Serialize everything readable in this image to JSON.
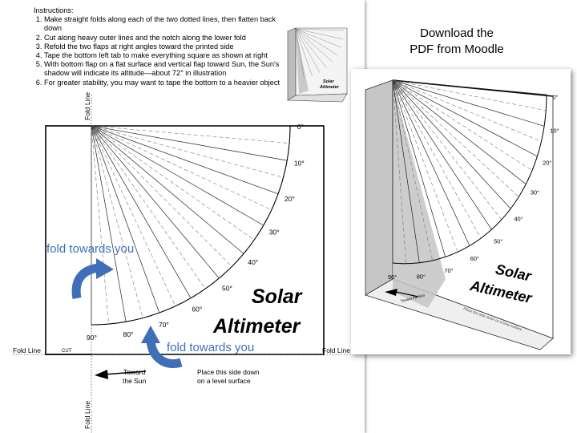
{
  "instructions": {
    "heading": "Instructions:",
    "steps": [
      "Make straight folds along each of the two dotted lines, then flatten back down",
      "Cut along heavy outer lines and the notch along the lower fold",
      "Refold the two flaps at right angles toward the printed side",
      "Tape the bottom left tab to make everything square as shown at right",
      "With bottom flap on a flat surface and vertical flap toward Sun, the Sun's shadow will indicate its altitude—about 72° in illustration",
      "For greater stability, you may want to tape the bottom to a heavier object"
    ]
  },
  "download": {
    "line1": "Download the",
    "line2": "PDF from Moodle"
  },
  "template": {
    "fold_line_label": "Fold Line",
    "fold_towards_you": "fold towards you",
    "cut_label": "CUT",
    "toward_sun_line1": "Toward",
    "toward_sun_line2": "the Sun",
    "place_side_line1": "Place this side down",
    "place_side_line2": "on a level surface",
    "title_line1": "Solar",
    "title_line2": "Altimeter",
    "angle_labels": [
      "0°",
      "10°",
      "20°",
      "30°",
      "40°",
      "50°",
      "60°",
      "70°",
      "80°",
      "90°"
    ]
  },
  "photo": {
    "title_line1": "Solar",
    "title_line2": "Altimeter",
    "angle_labels": [
      "0°",
      "10°",
      "20°",
      "30°",
      "40°",
      "50°",
      "60°",
      "70°",
      "80°",
      "90°"
    ],
    "toward_sun": "Toward the Sun",
    "place_side": "Place this side down on a level surface"
  },
  "thumbnail": {
    "title_line1": "Solar",
    "title_line2": "Altimeter"
  },
  "colors": {
    "accent_blue": "#3e6fb8",
    "shadow_gray": "#c8c8c8"
  }
}
